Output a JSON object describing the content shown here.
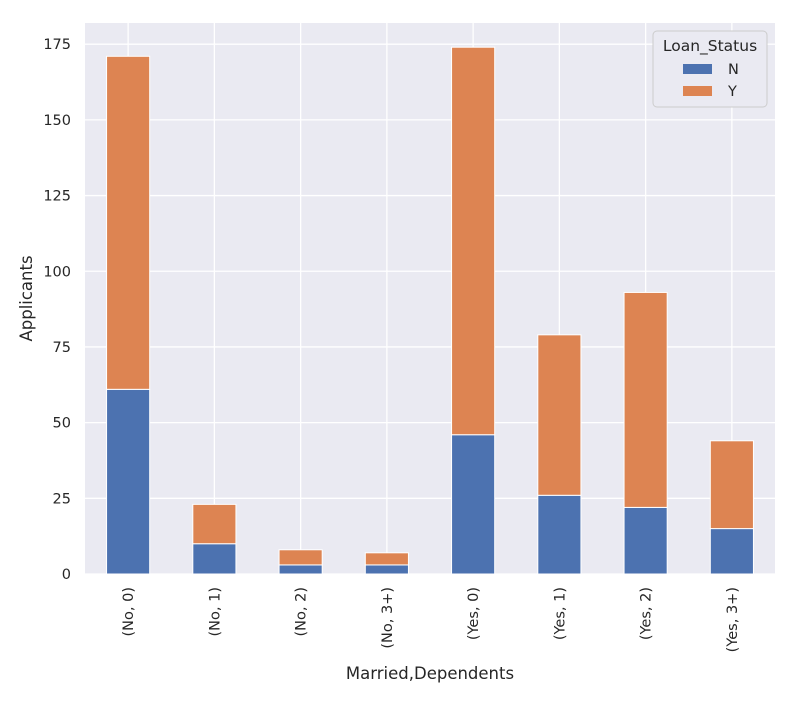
{
  "chart_data": {
    "type": "bar",
    "stacked": true,
    "xlabel": "Married,Dependents",
    "ylabel": "Applicants",
    "categories": [
      "(No, 0)",
      "(No, 1)",
      "(No, 2)",
      "(No, 3+)",
      "(Yes, 0)",
      "(Yes, 1)",
      "(Yes, 2)",
      "(Yes, 3+)"
    ],
    "series": [
      {
        "name": "N",
        "color": "#4c72b0",
        "values": [
          61,
          10,
          3,
          3,
          46,
          26,
          22,
          15
        ]
      },
      {
        "name": "Y",
        "color": "#dd8452",
        "values": [
          110,
          13,
          5,
          4,
          128,
          53,
          71,
          29
        ]
      }
    ],
    "ylim": [
      0,
      182
    ],
    "yticks": [
      0,
      25,
      50,
      75,
      100,
      125,
      150,
      175
    ],
    "grid": true,
    "legend": {
      "title": "Loan_Status",
      "position": "top-right"
    },
    "style": {
      "plot_background": "#eaeaf2",
      "grid_color": "#ffffff"
    }
  }
}
